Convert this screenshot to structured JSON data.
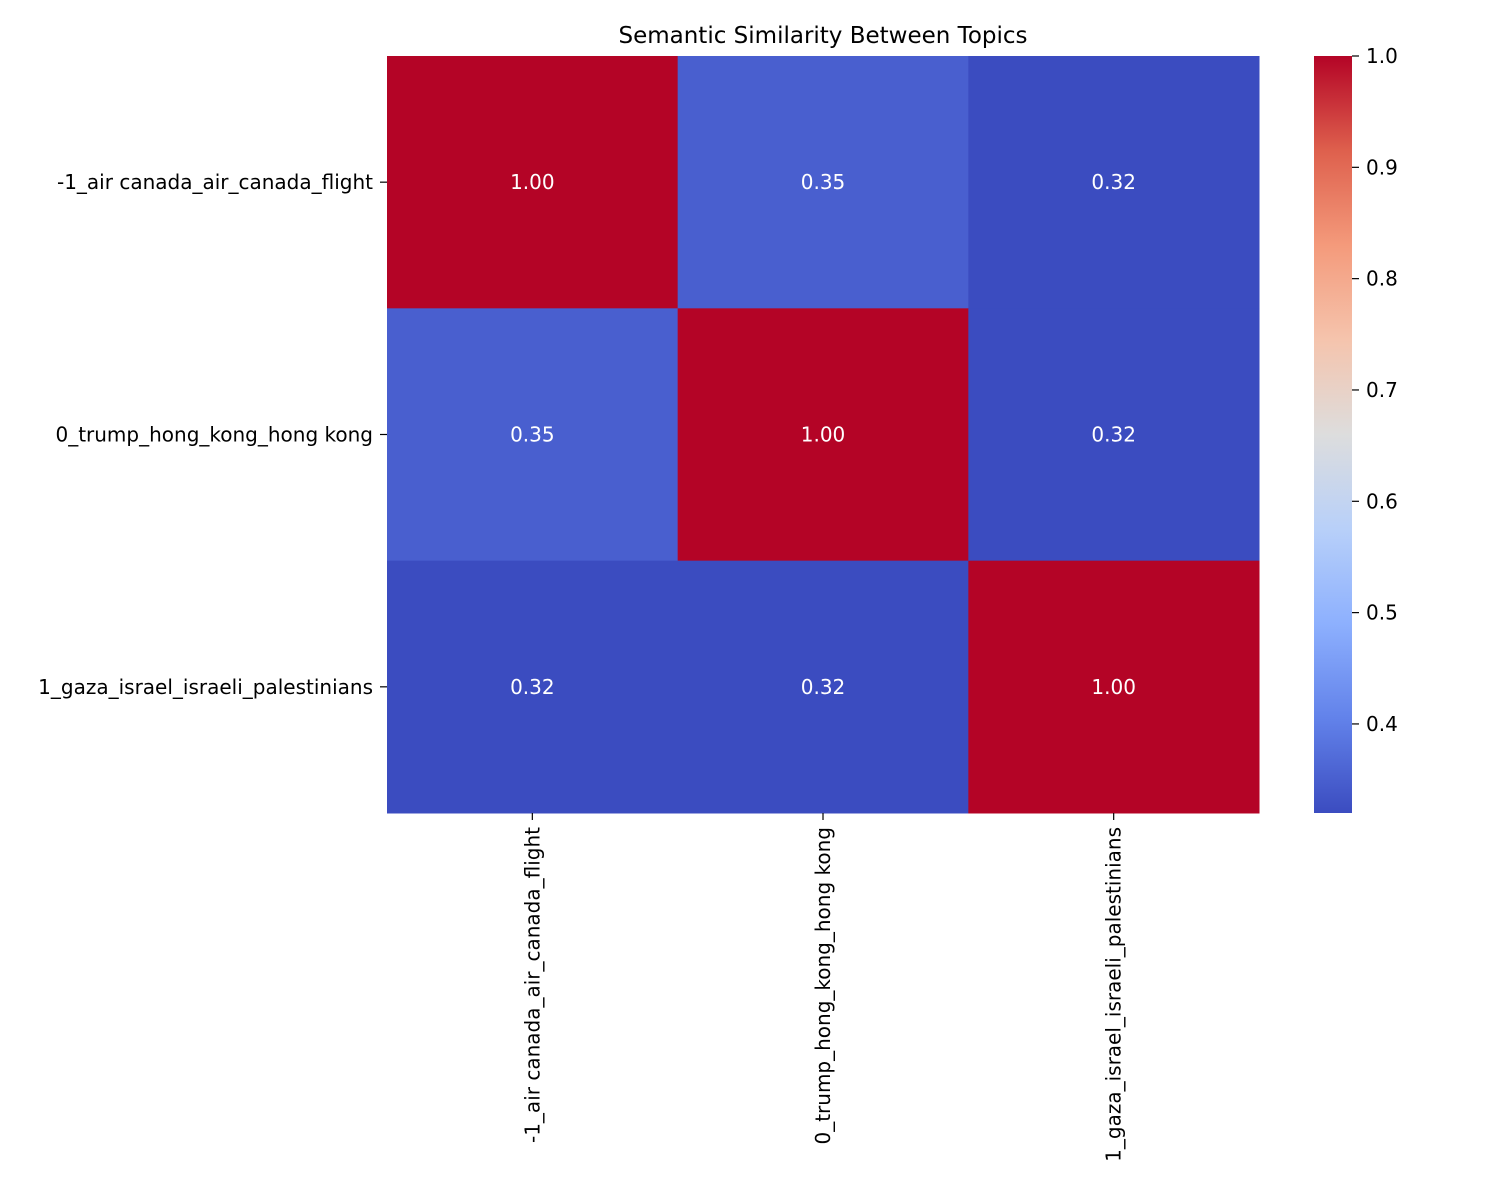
{
  "chart_data": {
    "type": "heatmap",
    "title": "Semantic Similarity Between Topics",
    "xlabel": "",
    "ylabel": "",
    "rows": [
      "-1_air canada_air_canada_flight",
      "0_trump_hong_kong_hong kong",
      "1_gaza_israel_israeli_palestinians"
    ],
    "columns": [
      "-1_air canada_air_canada_flight",
      "0_trump_hong_kong_hong kong",
      "1_gaza_israel_israeli_palestinians"
    ],
    "values": [
      [
        1.0,
        0.35,
        0.32
      ],
      [
        0.35,
        1.0,
        0.32
      ],
      [
        0.32,
        0.32,
        1.0
      ]
    ],
    "annotations": [
      [
        "1.00",
        "0.35",
        "0.32"
      ],
      [
        "0.35",
        "1.00",
        "0.32"
      ],
      [
        "0.32",
        "0.32",
        "1.00"
      ]
    ],
    "colormap": "coolwarm",
    "colorbar": {
      "vmin": 0.32,
      "vmax": 1.0,
      "ticks": [
        0.4,
        0.5,
        0.6,
        0.7,
        0.8,
        0.9,
        1.0
      ],
      "tick_labels": [
        "0.4",
        "0.5",
        "0.6",
        "0.7",
        "0.8",
        "0.9",
        "1.0"
      ]
    },
    "grid": false,
    "legend": "none"
  }
}
